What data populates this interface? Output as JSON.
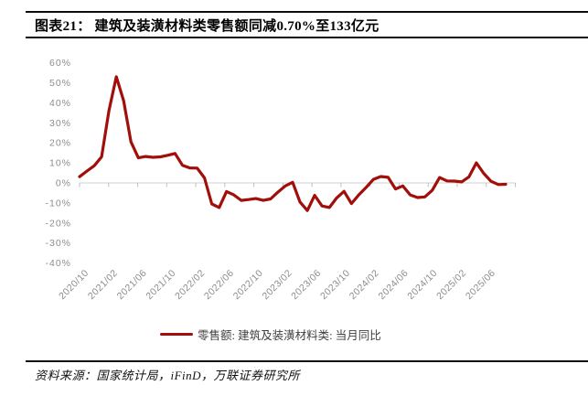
{
  "header": {
    "title": "图表21： 建筑及装潢材料类零售额同减0.70%至133亿元"
  },
  "legend": {
    "label": "零售额: 建筑及装潢材料类: 当月同比"
  },
  "footer": {
    "source": "资料来源：国家统计局，iFinD，万联证券研究所"
  },
  "colors": {
    "series": "#a00f0a",
    "axis_label": "#8c8c8c",
    "axis_line": "#d9d9d9",
    "tick": "#bfbfbf",
    "rule": "#0d0d0d",
    "legend_text": "#3f3f3f"
  },
  "chart_data": {
    "type": "line",
    "title": "",
    "xlabel": "",
    "ylabel": "",
    "ylim": [
      -40,
      60
    ],
    "grid": "none",
    "zero_axis_line": true,
    "legend_position": "bottom-center",
    "x": [
      "2020/09",
      "2020/10",
      "2020/11",
      "2020/12",
      "2021/01",
      "2021/02",
      "2021/03",
      "2021/04",
      "2021/05",
      "2021/06",
      "2021/07",
      "2021/08",
      "2021/09",
      "2021/10",
      "2021/11",
      "2021/12",
      "2022/01",
      "2022/02",
      "2022/03",
      "2022/04",
      "2022/05",
      "2022/06",
      "2022/07",
      "2022/08",
      "2022/09",
      "2022/10",
      "2022/11",
      "2022/12",
      "2023/01",
      "2023/02",
      "2023/03",
      "2023/04",
      "2023/05",
      "2023/06",
      "2023/07",
      "2023/08",
      "2023/09",
      "2023/10",
      "2023/11",
      "2023/12",
      "2024/01",
      "2024/02",
      "2024/03",
      "2024/04",
      "2024/05",
      "2024/06",
      "2024/07",
      "2024/08",
      "2024/09",
      "2024/10",
      "2024/11",
      "2024/12",
      "2025/01",
      "2025/02",
      "2025/03",
      "2025/04",
      "2025/05",
      "2025/06",
      "2025/07"
    ],
    "series": [
      {
        "name": "零售额: 建筑及装潢材料类: 当月同比",
        "unit": "%",
        "values": [
          3.1,
          5.9,
          8.6,
          13.0,
          36.0,
          53.0,
          41.0,
          20.5,
          12.5,
          13.2,
          12.8,
          13.0,
          13.8,
          14.7,
          8.8,
          7.5,
          7.4,
          2.5,
          -10.5,
          -12.3,
          -4.3,
          -6.0,
          -8.7,
          -8.3,
          -7.8,
          -8.7,
          -8.0,
          -4.6,
          -1.5,
          0.3,
          -9.5,
          -13.8,
          -6.2,
          -11.5,
          -12.3,
          -7.5,
          -4.2,
          -10.3,
          -6.0,
          -2.3,
          1.8,
          3.2,
          2.8,
          -3.0,
          -1.5,
          -6.0,
          -7.3,
          -7.0,
          -3.7,
          2.7,
          1.0,
          0.9,
          0.5,
          3.0,
          10.0,
          4.8,
          0.8,
          -0.8,
          -0.7
        ]
      }
    ],
    "x_tick_labels": [
      "2020/10",
      "2021/02",
      "2021/06",
      "2021/10",
      "2022/02",
      "2022/06",
      "2022/10",
      "2023/02",
      "2023/06",
      "2023/10",
      "2024/02",
      "2024/06",
      "2024/10",
      "2025/02",
      "2025/06"
    ],
    "y_ticks": [
      60,
      50,
      40,
      30,
      20,
      10,
      0,
      -10,
      -20,
      -30,
      -40
    ],
    "y_tick_labels": [
      "60%",
      "50%",
      "40%",
      "30%",
      "20%",
      "10%",
      "0%",
      "-10%",
      "-20%",
      "-30%",
      "-40%"
    ]
  }
}
